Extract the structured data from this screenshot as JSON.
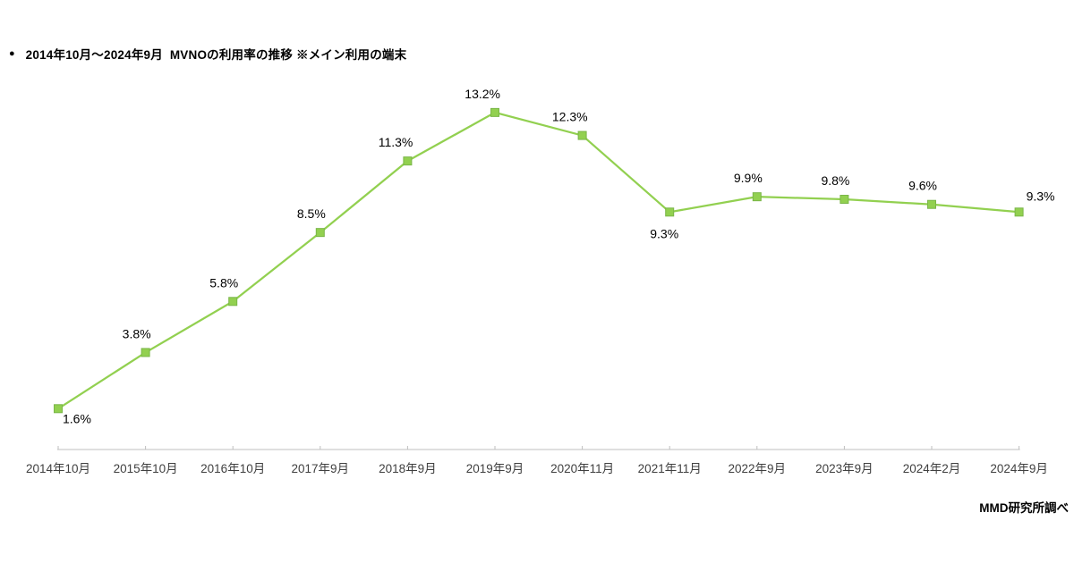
{
  "title": {
    "bullet": "●",
    "text": "2014年10月～2024年9月  MVNOの利用率の推移 ※メイン利用の端末"
  },
  "source": {
    "credit": "MMD研究所調べ"
  },
  "chart_data": {
    "type": "line",
    "title": "2014年10月～2024年9月 MVNOの利用率の推移 ※メイン利用の端末",
    "categories": [
      "2014年10月",
      "2015年10月",
      "2016年10月",
      "2017年9月",
      "2018年9月",
      "2019年9月",
      "2020年11月",
      "2021年11月",
      "2022年9月",
      "2023年9月",
      "2024年2月",
      "2024年9月"
    ],
    "series": [
      {
        "name": "MVNOの利用率",
        "values": [
          1.6,
          3.8,
          5.8,
          8.5,
          11.3,
          13.2,
          12.3,
          9.3,
          9.9,
          9.8,
          9.6,
          9.3
        ],
        "data_labels": [
          "1.6%",
          "3.8%",
          "5.8%",
          "8.5%",
          "11.3%",
          "13.2%",
          "12.3%",
          "9.3%",
          "9.9%",
          "9.8%",
          "9.6%",
          "9.3%"
        ],
        "label_placements": [
          "below-right",
          "above",
          "above",
          "above",
          "above",
          "above",
          "above",
          "below",
          "above",
          "above",
          "above",
          "right"
        ],
        "line_color": "#92d050",
        "marker_fill": "#92d050",
        "marker_border": "#7ab648",
        "marker_shape": "square"
      }
    ],
    "xlabel": "",
    "ylabel": "",
    "unit": "%",
    "ylim": [
      0,
      14
    ],
    "grid": false,
    "legend": "none",
    "y_axis_visible": false,
    "axis_color": "#bfbfbf",
    "data_label_color": "#000000",
    "tick_label_color": "#404040",
    "source": "MMD研究所調べ"
  }
}
